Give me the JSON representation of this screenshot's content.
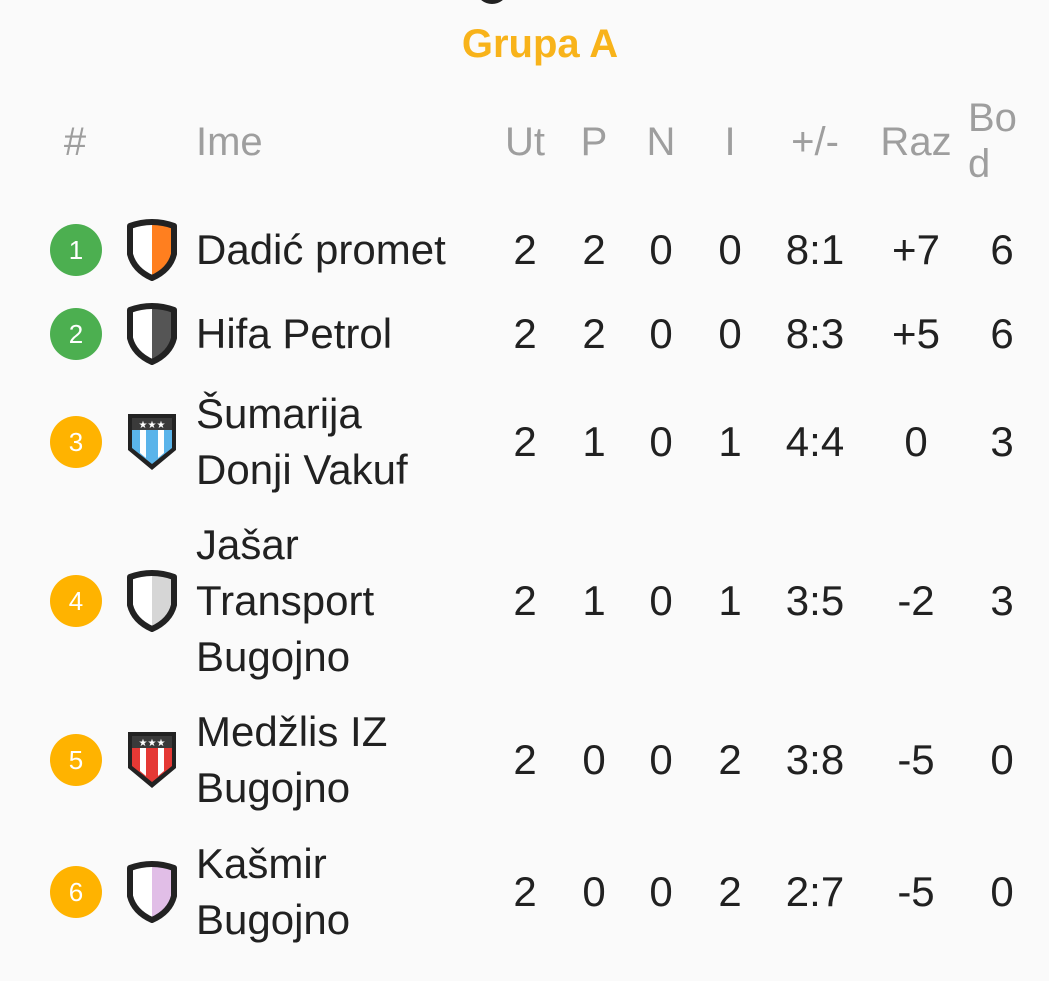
{
  "title": "Grupa A",
  "columns": {
    "rank": "#",
    "name": "Ime",
    "played": "Ut",
    "won": "P",
    "drawn": "N",
    "lost": "I",
    "goals": "+/-",
    "diff": "Raz",
    "points_1": "Bo",
    "points_2": "d"
  },
  "colors": {
    "title": "#f8b31a",
    "promotion": "#4caf50",
    "other": "#ffb300"
  },
  "rows": [
    {
      "rank": "1",
      "badge_color": "#4caf50",
      "shield": {
        "type": "half",
        "color": "#ff7f1f"
      },
      "name_lines": [
        "Dadić promet"
      ],
      "played": "2",
      "won": "2",
      "drawn": "0",
      "lost": "0",
      "goals": "8:1",
      "diff": "+7",
      "points": "6"
    },
    {
      "rank": "2",
      "badge_color": "#4caf50",
      "shield": {
        "type": "half",
        "color": "#555555"
      },
      "name_lines": [
        "Hifa Petrol"
      ],
      "played": "2",
      "won": "2",
      "drawn": "0",
      "lost": "0",
      "goals": "8:3",
      "diff": "+5",
      "points": "6"
    },
    {
      "rank": "3",
      "badge_color": "#ffb300",
      "shield": {
        "type": "stripes",
        "color": "#5ab4ea"
      },
      "name_lines": [
        "Šumarija",
        "Donji Vakuf"
      ],
      "played": "2",
      "won": "1",
      "drawn": "0",
      "lost": "1",
      "goals": "4:4",
      "diff": "0",
      "points": "3"
    },
    {
      "rank": "4",
      "badge_color": "#ffb300",
      "shield": {
        "type": "half",
        "color": "#d6d6d6"
      },
      "name_lines": [
        "Jašar",
        "Transport",
        "Bugojno"
      ],
      "played": "2",
      "won": "1",
      "drawn": "0",
      "lost": "1",
      "goals": "3:5",
      "diff": "-2",
      "points": "3"
    },
    {
      "rank": "5",
      "badge_color": "#ffb300",
      "shield": {
        "type": "stripes",
        "color": "#e53935"
      },
      "name_lines": [
        "Medžlis IZ",
        "Bugojno"
      ],
      "played": "2",
      "won": "0",
      "drawn": "0",
      "lost": "2",
      "goals": "3:8",
      "diff": "-5",
      "points": "0"
    },
    {
      "rank": "6",
      "badge_color": "#ffb300",
      "shield": {
        "type": "half",
        "color": "#e1bee7"
      },
      "name_lines": [
        "Kašmir",
        "Bugojno"
      ],
      "played": "2",
      "won": "0",
      "drawn": "0",
      "lost": "2",
      "goals": "2:7",
      "diff": "-5",
      "points": "0"
    }
  ]
}
